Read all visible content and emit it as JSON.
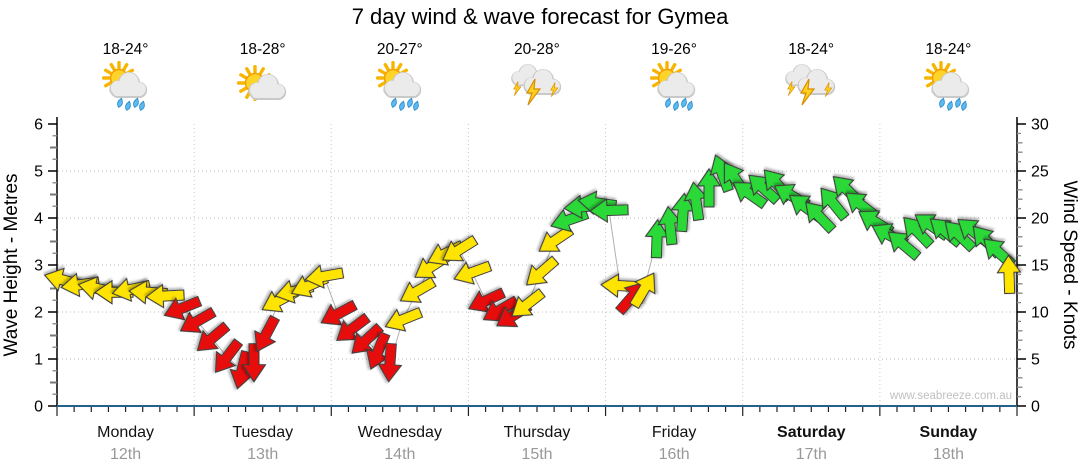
{
  "title": "7 day wind & wave forecast for Gymea",
  "watermark": "www.seabreeze.com.au",
  "axes": {
    "left_label": "Wave Height - Metres",
    "right_label": "Wind Speed - Knots",
    "left_ticks": [
      0,
      1,
      2,
      3,
      4,
      5,
      6
    ],
    "right_ticks": [
      0,
      5,
      10,
      15,
      20,
      25,
      30
    ],
    "left_range": [
      0,
      6
    ],
    "right_range": [
      0,
      30
    ]
  },
  "days": [
    {
      "name": "Monday",
      "date": "12th",
      "temp": "18-24°",
      "icon": "sun-cloud-rain",
      "bold": false
    },
    {
      "name": "Tuesday",
      "date": "13th",
      "temp": "18-28°",
      "icon": "sun-cloud",
      "bold": false
    },
    {
      "name": "Wednesday",
      "date": "14th",
      "temp": "20-27°",
      "icon": "sun-cloud-rain",
      "bold": false
    },
    {
      "name": "Thursday",
      "date": "15th",
      "temp": "20-28°",
      "icon": "storm",
      "bold": false
    },
    {
      "name": "Friday",
      "date": "16th",
      "temp": "19-26°",
      "icon": "sun-cloud-rain",
      "bold": false
    },
    {
      "name": "Saturday",
      "date": "17th",
      "temp": "18-24°",
      "icon": "storm",
      "bold": true
    },
    {
      "name": "Sunday",
      "date": "18th",
      "temp": "18-24°",
      "icon": "sun-cloud-rain",
      "bold": true
    }
  ],
  "colors": {
    "arrow_yellow": "#ffe400",
    "arrow_red": "#e81010",
    "arrow_green": "#2bd838",
    "arrow_outline": "#3a3a3a",
    "grid": "#bdbdbd",
    "axis": "#000000",
    "bottom_axis": "#24608a",
    "minor_tick": "#8c8c8c",
    "date_text": "#999999",
    "watermark_text": "#c0c0c0",
    "connector": "#b0b0b0"
  },
  "chart_data": {
    "type": "wind-arrow-series",
    "title": "7 day wind & wave forecast for Gymea",
    "x_axis": "days Monday 12th - Sunday 18th (8 slots per day)",
    "ylabel_left": "Wave Height - Metres",
    "ylabel_right": "Wind Speed - Knots",
    "ylim_left": [
      0,
      6
    ],
    "ylim_right": [
      0,
      30
    ],
    "grid": "dotted horizontal every 5 knots, dotted vertical at day boundaries",
    "legend": "arrow colour = wind quality (yellow/red/green), arrow angle = wind direction, height = wind speed in knots",
    "arrows": {
      "columns": [
        "x_px",
        "knots",
        "dir_deg_screen",
        "color"
      ],
      "rows": [
        [
          63,
          13.4,
          195,
          "yellow"
        ],
        [
          80,
          12.9,
          172,
          "yellow"
        ],
        [
          97,
          12.5,
          192,
          "yellow"
        ],
        [
          114,
          12.1,
          180,
          "yellow"
        ],
        [
          131,
          12.4,
          168,
          "yellow"
        ],
        [
          148,
          12.1,
          184,
          "yellow"
        ],
        [
          165,
          11.7,
          177,
          "yellow"
        ],
        [
          182,
          10.4,
          158,
          "red"
        ],
        [
          197,
          9.0,
          150,
          "red"
        ],
        [
          212,
          7.2,
          140,
          "red"
        ],
        [
          227,
          5.2,
          127,
          "red"
        ],
        [
          242,
          3.8,
          104,
          "red"
        ],
        [
          254,
          4.6,
          90,
          "red"
        ],
        [
          266,
          7.6,
          118,
          "red"
        ],
        [
          279,
          11.2,
          152,
          "yellow"
        ],
        [
          294,
          12.2,
          166,
          "yellow"
        ],
        [
          309,
          12.8,
          156,
          "yellow"
        ],
        [
          324,
          13.8,
          170,
          "yellow"
        ],
        [
          338,
          9.8,
          152,
          "red"
        ],
        [
          352,
          8.2,
          143,
          "red"
        ],
        [
          366,
          7.0,
          137,
          "red"
        ],
        [
          378,
          5.8,
          112,
          "red"
        ],
        [
          390,
          4.6,
          94,
          "red"
        ],
        [
          403,
          9.2,
          158,
          "yellow"
        ],
        [
          417,
          12.2,
          150,
          "yellow"
        ],
        [
          431,
          14.8,
          147,
          "yellow"
        ],
        [
          445,
          16.2,
          154,
          "yellow"
        ],
        [
          459,
          16.6,
          148,
          "yellow"
        ],
        [
          472,
          14.2,
          160,
          "yellow"
        ],
        [
          486,
          11.2,
          155,
          "red"
        ],
        [
          500,
          10.2,
          150,
          "red"
        ],
        [
          513,
          9.6,
          148,
          "red"
        ],
        [
          527,
          10.8,
          142,
          "yellow"
        ],
        [
          541,
          14.2,
          139,
          "yellow"
        ],
        [
          555,
          17.6,
          146,
          "yellow"
        ],
        [
          569,
          19.8,
          161,
          "green"
        ],
        [
          583,
          21.2,
          175,
          "green"
        ],
        [
          597,
          21.6,
          188,
          "green"
        ],
        [
          609,
          20.8,
          178,
          "green"
        ],
        [
          620,
          12.8,
          183,
          "yellow"
        ],
        [
          632,
          11.6,
          311,
          "red"
        ],
        [
          644,
          12.4,
          301,
          "yellow"
        ],
        [
          657,
          17.8,
          272,
          "green"
        ],
        [
          670,
          19.2,
          264,
          "green"
        ],
        [
          683,
          20.6,
          274,
          "green"
        ],
        [
          696,
          21.8,
          262,
          "green"
        ],
        [
          709,
          23.2,
          270,
          "green"
        ],
        [
          722,
          24.8,
          250,
          "green"
        ],
        [
          735,
          24.2,
          236,
          "green"
        ],
        [
          749,
          22.6,
          215,
          "green"
        ],
        [
          763,
          23.2,
          222,
          "green"
        ],
        [
          777,
          23.6,
          228,
          "green"
        ],
        [
          791,
          22.4,
          210,
          "green"
        ],
        [
          805,
          21.2,
          216,
          "green"
        ],
        [
          819,
          20.2,
          226,
          "green"
        ],
        [
          833,
          21.6,
          231,
          "green"
        ],
        [
          847,
          23.0,
          224,
          "green"
        ],
        [
          861,
          21.4,
          218,
          "green"
        ],
        [
          875,
          19.6,
          212,
          "green"
        ],
        [
          889,
          18.2,
          208,
          "green"
        ],
        [
          903,
          17.2,
          220,
          "green"
        ],
        [
          917,
          18.6,
          226,
          "green"
        ],
        [
          931,
          19.2,
          214,
          "green"
        ],
        [
          945,
          18.6,
          220,
          "green"
        ],
        [
          959,
          18.2,
          224,
          "green"
        ],
        [
          973,
          18.6,
          218,
          "green"
        ],
        [
          986,
          17.6,
          228,
          "green"
        ],
        [
          998,
          16.4,
          222,
          "green"
        ],
        [
          1009,
          14.0,
          268,
          "yellow"
        ]
      ]
    }
  }
}
